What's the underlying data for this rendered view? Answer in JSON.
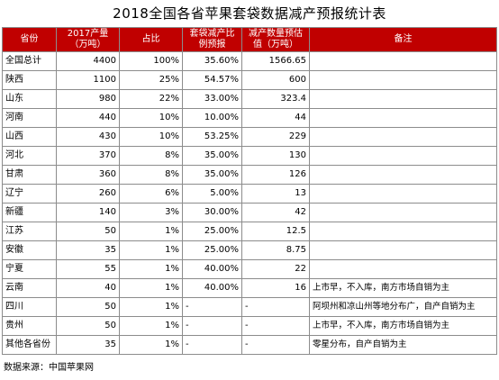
{
  "title": "2018全国各省苹果套袋数据减产预报统计表",
  "headers": [
    "省份",
    "2017产量（万吨）",
    "占比",
    "套袋减产比例预报",
    "减产数量预估值（万吨）",
    "备注"
  ],
  "rows": [
    {
      "province": "全国总计",
      "production": "4400",
      "share": "100%",
      "ratio": "35.60%",
      "reduction": "1566.65",
      "note": ""
    },
    {
      "province": "陕西",
      "production": "1100",
      "share": "25%",
      "ratio": "54.57%",
      "reduction": "600",
      "note": ""
    },
    {
      "province": "山东",
      "production": "980",
      "share": "22%",
      "ratio": "33.00%",
      "reduction": "323.4",
      "note": ""
    },
    {
      "province": "河南",
      "production": "440",
      "share": "10%",
      "ratio": "10.00%",
      "reduction": "44",
      "note": ""
    },
    {
      "province": "山西",
      "production": "430",
      "share": "10%",
      "ratio": "53.25%",
      "reduction": "229",
      "note": ""
    },
    {
      "province": "河北",
      "production": "370",
      "share": "8%",
      "ratio": "35.00%",
      "reduction": "130",
      "note": ""
    },
    {
      "province": "甘肃",
      "production": "360",
      "share": "8%",
      "ratio": "35.00%",
      "reduction": "126",
      "note": ""
    },
    {
      "province": "辽宁",
      "production": "260",
      "share": "6%",
      "ratio": "5.00%",
      "reduction": "13",
      "note": ""
    },
    {
      "province": "新疆",
      "production": "140",
      "share": "3%",
      "ratio": "30.00%",
      "reduction": "42",
      "note": ""
    },
    {
      "province": "江苏",
      "production": "50",
      "share": "1%",
      "ratio": "25.00%",
      "reduction": "12.5",
      "note": ""
    },
    {
      "province": "安徽",
      "production": "35",
      "share": "1%",
      "ratio": "25.00%",
      "reduction": "8.75",
      "note": ""
    },
    {
      "province": "宁夏",
      "production": "55",
      "share": "1%",
      "ratio": "40.00%",
      "reduction": "22",
      "note": ""
    },
    {
      "province": "云南",
      "production": "40",
      "share": "1%",
      "ratio": "40.00%",
      "reduction": "16",
      "note": "上市早，不入库，南方市场自销为主"
    },
    {
      "province": "四川",
      "production": "50",
      "share": "1%",
      "ratio": "-",
      "reduction": "-",
      "note": "阿坝州和凉山州等地分布广，自产自销为主"
    },
    {
      "province": "贵州",
      "production": "50",
      "share": "1%",
      "ratio": "-",
      "reduction": "-",
      "note": "上市早，不入库，南方市场自销为主"
    },
    {
      "province": "其他各省份",
      "production": "35",
      "share": "1%",
      "ratio": "-",
      "reduction": "-",
      "note": "零星分布，自产自销为主"
    }
  ],
  "source": "数据来源：中国苹果网",
  "colors": {
    "header_bg": "#c00000",
    "header_text": "#ffffff",
    "border": "#8c8c8c"
  }
}
